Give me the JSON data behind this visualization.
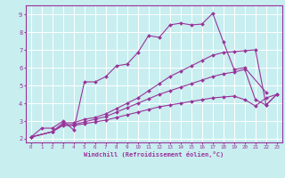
{
  "title": "",
  "xlabel": "Windchill (Refroidissement éolien,°C)",
  "background_color": "#c8eef0",
  "grid_color": "#aadddd",
  "line_color": "#993399",
  "xlim": [
    -0.5,
    23.5
  ],
  "ylim": [
    1.8,
    9.5
  ],
  "xticks": [
    0,
    1,
    2,
    3,
    4,
    5,
    6,
    7,
    8,
    9,
    10,
    11,
    12,
    13,
    14,
    15,
    16,
    17,
    18,
    19,
    20,
    21,
    22,
    23
  ],
  "yticks": [
    2,
    3,
    4,
    5,
    6,
    7,
    8,
    9
  ],
  "series": [
    {
      "x": [
        0,
        1,
        2,
        3,
        4,
        5,
        6,
        7,
        8,
        9,
        10,
        11,
        12,
        13,
        14,
        15,
        16,
        17,
        18,
        19,
        20,
        22
      ],
      "y": [
        2.1,
        2.6,
        2.6,
        3.0,
        2.5,
        5.2,
        5.2,
        5.5,
        6.1,
        6.2,
        6.85,
        7.8,
        7.7,
        8.4,
        8.5,
        8.4,
        8.45,
        9.05,
        7.45,
        5.9,
        6.0,
        4.6
      ]
    },
    {
      "x": [
        0,
        2,
        3,
        4,
        5,
        6,
        7,
        8,
        9,
        10,
        11,
        12,
        13,
        14,
        15,
        16,
        17,
        18,
        19,
        20,
        21,
        22,
        23
      ],
      "y": [
        2.1,
        2.4,
        2.9,
        2.9,
        3.1,
        3.2,
        3.4,
        3.7,
        4.0,
        4.3,
        4.7,
        5.1,
        5.5,
        5.8,
        6.1,
        6.4,
        6.7,
        6.85,
        6.9,
        6.95,
        7.0,
        3.9,
        4.5
      ]
    },
    {
      "x": [
        0,
        2,
        3,
        4,
        5,
        6,
        7,
        8,
        9,
        10,
        11,
        12,
        13,
        14,
        15,
        16,
        17,
        18,
        19,
        20,
        21,
        22,
        23
      ],
      "y": [
        2.1,
        2.4,
        2.8,
        2.8,
        2.95,
        3.1,
        3.25,
        3.5,
        3.75,
        4.0,
        4.25,
        4.5,
        4.7,
        4.9,
        5.1,
        5.3,
        5.5,
        5.65,
        5.75,
        5.9,
        4.2,
        3.9,
        4.5
      ]
    },
    {
      "x": [
        0,
        2,
        3,
        4,
        5,
        6,
        7,
        8,
        9,
        10,
        11,
        12,
        13,
        14,
        15,
        16,
        17,
        18,
        19,
        20,
        21,
        22,
        23
      ],
      "y": [
        2.1,
        2.4,
        2.75,
        2.75,
        2.85,
        2.95,
        3.05,
        3.2,
        3.35,
        3.5,
        3.65,
        3.8,
        3.9,
        4.0,
        4.1,
        4.2,
        4.3,
        4.35,
        4.4,
        4.2,
        3.85,
        4.3,
        4.5
      ]
    }
  ]
}
